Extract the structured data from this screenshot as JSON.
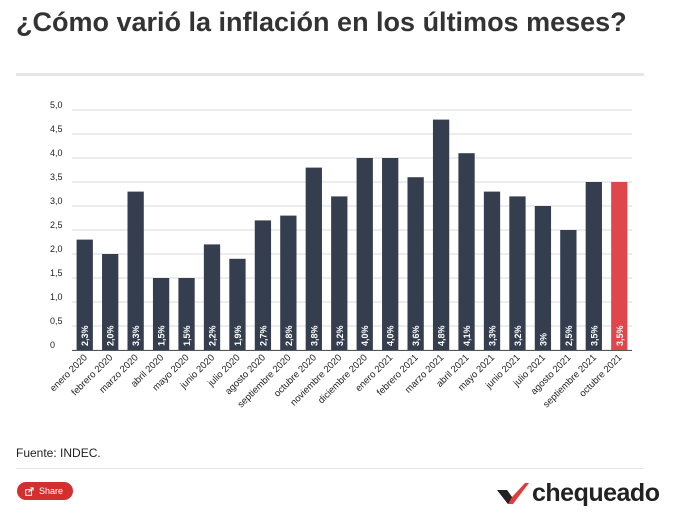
{
  "title": "¿Cómo varió la inflación en los últimos meses?",
  "source": "Fuente: INDEC.",
  "share_label": "Share",
  "brand": "chequeado",
  "colors": {
    "bar": "#343e4f",
    "highlight": "#e0474c",
    "label": "#ffffff",
    "grid": "#d9d9d9",
    "brand_accent": "#e03c3c"
  },
  "chart_data": {
    "type": "bar",
    "title": "¿Cómo varió la inflación en los últimos meses?",
    "xlabel": "",
    "ylabel": "",
    "ylim": [
      0,
      5.0
    ],
    "yticks": [
      "0",
      "0,5",
      "1,0",
      "1,5",
      "2,0",
      "2,5",
      "3,0",
      "3,5",
      "4,0",
      "4,5",
      "5,0"
    ],
    "grid": true,
    "categories": [
      "enero 2020",
      "febrero 2020",
      "marzo 2020",
      "abril 2020",
      "mayo 2020",
      "junio 2020",
      "julio 2020",
      "agosto 2020",
      "septiembre 2020",
      "octubre 2020",
      "noviembre 2020",
      "diciembre 2020",
      "enero 2021",
      "febrero 2021",
      "marzo 2021",
      "abril 2021",
      "mayo 2021",
      "junio 2021",
      "julio 2021",
      "agosto 2021",
      "septiembre 2021",
      "octubre 2021"
    ],
    "values": [
      2.3,
      2.0,
      3.3,
      1.5,
      1.5,
      2.2,
      1.9,
      2.7,
      2.8,
      3.8,
      3.2,
      4.0,
      4.0,
      3.6,
      4.8,
      4.1,
      3.3,
      3.2,
      3.0,
      2.5,
      3.5,
      3.5
    ],
    "data_labels": [
      "2,3%",
      "2,0%",
      "3,3%",
      "1,5%",
      "1,5%",
      "2,2%",
      "1,9%",
      "2,7%",
      "2,8%",
      "3,8%",
      "3,2%",
      "4,0%",
      "4,0%",
      "3,6%",
      "4,8%",
      "4,1%",
      "3,3%",
      "3,2%",
      "3%",
      "2,5%",
      "3,5%",
      "3,5%"
    ],
    "highlight_index": 21
  }
}
